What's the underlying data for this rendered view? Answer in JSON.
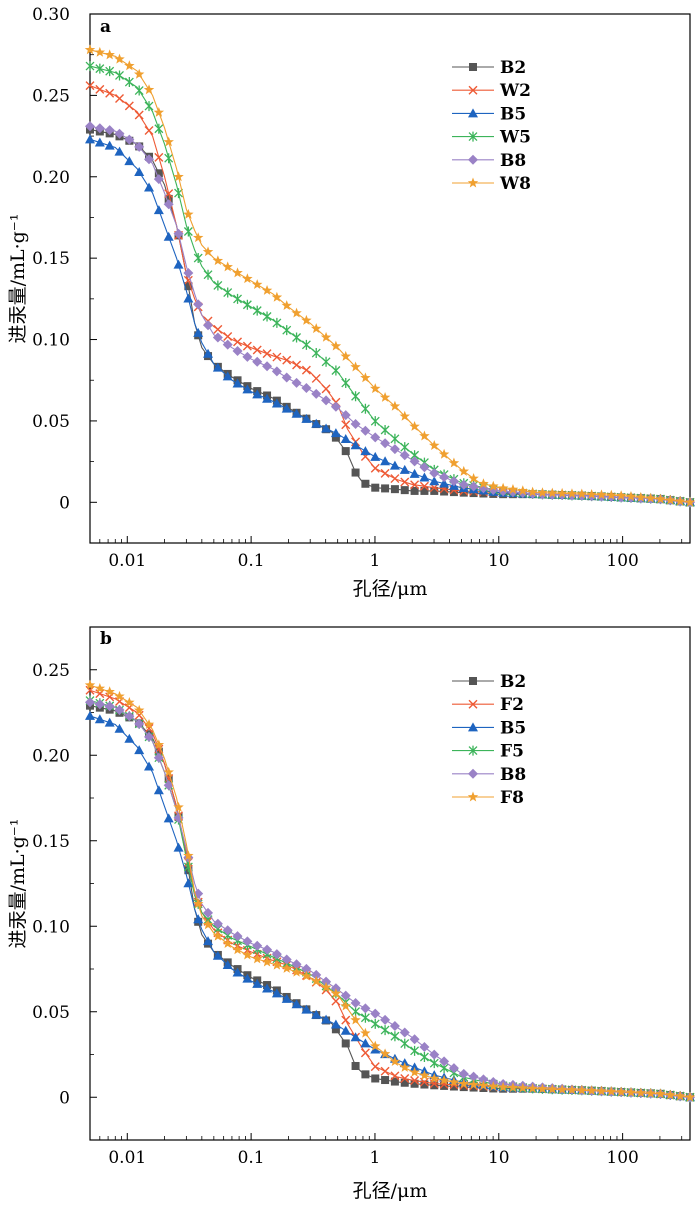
{
  "chart_data": [
    {
      "type": "line",
      "panel_label": "a",
      "xlabel": "孔径/μm",
      "ylabel": "进汞量/mL·g⁻¹",
      "x_scale": "log",
      "xlim": [
        0.005,
        350
      ],
      "ylim": [
        -0.025,
        0.3
      ],
      "x_ticks": [
        0.01,
        0.1,
        1,
        10,
        100
      ],
      "x_tick_labels": [
        "0.01",
        "0.1",
        "1",
        "10",
        "100"
      ],
      "y_ticks": [
        0,
        0.05,
        0.1,
        0.15,
        0.2,
        0.25,
        0.3
      ],
      "y_tick_labels": [
        "0",
        "0.05",
        "0.10",
        "0.15",
        "0.20",
        "0.25",
        "0.30"
      ],
      "legend_position": "top-right",
      "grid": false,
      "series": [
        {
          "name": "B2",
          "color": "#555555",
          "marker": "square",
          "x": [
            0.005,
            0.008,
            0.012,
            0.016,
            0.02,
            0.025,
            0.03,
            0.035,
            0.04,
            0.05,
            0.07,
            0.1,
            0.15,
            0.2,
            0.3,
            0.45,
            0.6,
            0.7,
            0.8,
            1,
            1.5,
            2,
            3,
            5,
            10,
            20,
            50,
            100,
            200,
            350
          ],
          "y": [
            0.229,
            0.226,
            0.22,
            0.21,
            0.195,
            0.17,
            0.14,
            0.11,
            0.095,
            0.085,
            0.077,
            0.07,
            0.064,
            0.058,
            0.05,
            0.043,
            0.03,
            0.018,
            0.012,
            0.009,
            0.008,
            0.007,
            0.007,
            0.006,
            0.005,
            0.005,
            0.004,
            0.003,
            0.002,
            0.0
          ]
        },
        {
          "name": "W2",
          "color": "#ee5a35",
          "marker": "x",
          "x": [
            0.005,
            0.008,
            0.012,
            0.016,
            0.02,
            0.025,
            0.03,
            0.035,
            0.04,
            0.05,
            0.07,
            0.1,
            0.15,
            0.2,
            0.3,
            0.4,
            0.5,
            0.6,
            0.8,
            1,
            1.5,
            2,
            3,
            5,
            10,
            20,
            50,
            100,
            200,
            350
          ],
          "y": [
            0.256,
            0.25,
            0.24,
            0.225,
            0.2,
            0.17,
            0.14,
            0.125,
            0.115,
            0.108,
            0.1,
            0.095,
            0.09,
            0.087,
            0.08,
            0.07,
            0.06,
            0.045,
            0.03,
            0.021,
            0.014,
            0.011,
            0.009,
            0.007,
            0.006,
            0.005,
            0.004,
            0.003,
            0.002,
            0.0
          ]
        },
        {
          "name": "B5",
          "color": "#1e64c0",
          "marker": "triangle",
          "x": [
            0.005,
            0.008,
            0.012,
            0.016,
            0.02,
            0.025,
            0.03,
            0.035,
            0.04,
            0.05,
            0.07,
            0.1,
            0.15,
            0.2,
            0.3,
            0.5,
            0.7,
            1,
            1.5,
            2,
            3,
            5,
            10,
            20,
            50,
            100,
            200,
            350
          ],
          "y": [
            0.223,
            0.218,
            0.205,
            0.19,
            0.17,
            0.15,
            0.13,
            0.11,
            0.098,
            0.085,
            0.075,
            0.068,
            0.062,
            0.057,
            0.05,
            0.042,
            0.035,
            0.028,
            0.022,
            0.018,
            0.013,
            0.009,
            0.006,
            0.005,
            0.004,
            0.003,
            0.002,
            0.0
          ]
        },
        {
          "name": "W5",
          "color": "#3cb45a",
          "marker": "asterisk",
          "x": [
            0.005,
            0.008,
            0.012,
            0.016,
            0.02,
            0.025,
            0.03,
            0.035,
            0.04,
            0.05,
            0.07,
            0.1,
            0.15,
            0.2,
            0.3,
            0.5,
            0.7,
            1,
            1.5,
            2,
            3,
            5,
            10,
            20,
            50,
            100,
            200,
            350
          ],
          "y": [
            0.268,
            0.264,
            0.255,
            0.24,
            0.22,
            0.195,
            0.17,
            0.155,
            0.145,
            0.135,
            0.127,
            0.12,
            0.112,
            0.105,
            0.095,
            0.08,
            0.065,
            0.05,
            0.038,
            0.03,
            0.02,
            0.012,
            0.007,
            0.005,
            0.004,
            0.003,
            0.002,
            0.0
          ]
        },
        {
          "name": "B8",
          "color": "#9a82c6",
          "marker": "diamond",
          "x": [
            0.005,
            0.008,
            0.012,
            0.016,
            0.02,
            0.025,
            0.03,
            0.035,
            0.04,
            0.05,
            0.07,
            0.1,
            0.15,
            0.2,
            0.3,
            0.5,
            0.7,
            1,
            1.5,
            2,
            3,
            5,
            10,
            20,
            50,
            100,
            200,
            350
          ],
          "y": [
            0.231,
            0.228,
            0.22,
            0.208,
            0.19,
            0.17,
            0.145,
            0.128,
            0.115,
            0.103,
            0.095,
            0.088,
            0.082,
            0.076,
            0.069,
            0.058,
            0.048,
            0.04,
            0.032,
            0.026,
            0.018,
            0.011,
            0.007,
            0.005,
            0.004,
            0.003,
            0.002,
            0.0
          ]
        },
        {
          "name": "W8",
          "color": "#f0a030",
          "marker": "star",
          "x": [
            0.005,
            0.008,
            0.012,
            0.016,
            0.02,
            0.025,
            0.03,
            0.035,
            0.04,
            0.05,
            0.07,
            0.1,
            0.15,
            0.2,
            0.3,
            0.5,
            0.7,
            1,
            1.5,
            2,
            3,
            5,
            7,
            10,
            20,
            50,
            100,
            200,
            350
          ],
          "y": [
            0.278,
            0.274,
            0.265,
            0.25,
            0.23,
            0.205,
            0.18,
            0.167,
            0.158,
            0.15,
            0.143,
            0.136,
            0.128,
            0.12,
            0.11,
            0.095,
            0.083,
            0.07,
            0.058,
            0.048,
            0.035,
            0.02,
            0.012,
            0.009,
            0.006,
            0.005,
            0.004,
            0.002,
            0.0
          ]
        }
      ]
    },
    {
      "type": "line",
      "panel_label": "b",
      "xlabel": "孔径/μm",
      "ylabel": "进汞量/mL·g⁻¹",
      "x_scale": "log",
      "xlim": [
        0.005,
        350
      ],
      "ylim": [
        -0.025,
        0.275
      ],
      "x_ticks": [
        0.01,
        0.1,
        1,
        10,
        100
      ],
      "x_tick_labels": [
        "0.01",
        "0.1",
        "1",
        "10",
        "100"
      ],
      "y_ticks": [
        0,
        0.05,
        0.1,
        0.15,
        0.2,
        0.25
      ],
      "y_tick_labels": [
        "0",
        "0.05",
        "0.10",
        "0.15",
        "0.20",
        "0.25"
      ],
      "legend_position": "top-right",
      "grid": false,
      "series": [
        {
          "name": "B2",
          "color": "#555555",
          "marker": "square",
          "x": [
            0.005,
            0.008,
            0.012,
            0.016,
            0.02,
            0.025,
            0.03,
            0.035,
            0.04,
            0.05,
            0.07,
            0.1,
            0.15,
            0.2,
            0.3,
            0.45,
            0.6,
            0.7,
            0.8,
            1,
            1.5,
            2,
            3,
            5,
            10,
            20,
            50,
            100,
            200,
            350
          ],
          "y": [
            0.229,
            0.226,
            0.22,
            0.21,
            0.195,
            0.17,
            0.14,
            0.11,
            0.095,
            0.085,
            0.077,
            0.07,
            0.064,
            0.058,
            0.05,
            0.043,
            0.03,
            0.018,
            0.014,
            0.011,
            0.009,
            0.008,
            0.007,
            0.006,
            0.005,
            0.005,
            0.004,
            0.003,
            0.002,
            0.0
          ]
        },
        {
          "name": "F2",
          "color": "#ee5a35",
          "marker": "x",
          "x": [
            0.005,
            0.008,
            0.012,
            0.016,
            0.02,
            0.025,
            0.03,
            0.035,
            0.04,
            0.05,
            0.07,
            0.1,
            0.15,
            0.2,
            0.3,
            0.4,
            0.5,
            0.6,
            0.8,
            1,
            1.5,
            2,
            3,
            5,
            10,
            20,
            50,
            100,
            200,
            350
          ],
          "y": [
            0.238,
            0.233,
            0.225,
            0.213,
            0.195,
            0.17,
            0.143,
            0.12,
            0.108,
            0.098,
            0.09,
            0.085,
            0.08,
            0.077,
            0.07,
            0.063,
            0.055,
            0.043,
            0.028,
            0.018,
            0.012,
            0.01,
            0.008,
            0.007,
            0.006,
            0.005,
            0.004,
            0.003,
            0.002,
            0.0
          ]
        },
        {
          "name": "B5",
          "color": "#1e64c0",
          "marker": "triangle",
          "x": [
            0.005,
            0.008,
            0.012,
            0.016,
            0.02,
            0.025,
            0.03,
            0.035,
            0.04,
            0.05,
            0.07,
            0.1,
            0.15,
            0.2,
            0.3,
            0.5,
            0.7,
            1,
            1.5,
            2,
            3,
            5,
            10,
            20,
            50,
            100,
            200,
            350
          ],
          "y": [
            0.223,
            0.218,
            0.205,
            0.19,
            0.17,
            0.15,
            0.13,
            0.11,
            0.098,
            0.085,
            0.075,
            0.068,
            0.062,
            0.057,
            0.05,
            0.042,
            0.035,
            0.028,
            0.022,
            0.018,
            0.013,
            0.009,
            0.006,
            0.005,
            0.004,
            0.003,
            0.002,
            0.0
          ]
        },
        {
          "name": "F5",
          "color": "#3cb45a",
          "marker": "asterisk",
          "x": [
            0.005,
            0.008,
            0.012,
            0.016,
            0.02,
            0.025,
            0.03,
            0.035,
            0.04,
            0.05,
            0.07,
            0.1,
            0.15,
            0.2,
            0.3,
            0.5,
            0.7,
            1,
            1.5,
            2,
            3,
            5,
            10,
            20,
            50,
            100,
            200,
            350
          ],
          "y": [
            0.232,
            0.228,
            0.22,
            0.208,
            0.19,
            0.168,
            0.14,
            0.118,
            0.108,
            0.1,
            0.093,
            0.088,
            0.082,
            0.078,
            0.072,
            0.06,
            0.05,
            0.043,
            0.035,
            0.028,
            0.02,
            0.012,
            0.007,
            0.005,
            0.004,
            0.003,
            0.002,
            0.0
          ]
        },
        {
          "name": "B8",
          "color": "#9a82c6",
          "marker": "diamond",
          "x": [
            0.005,
            0.008,
            0.012,
            0.016,
            0.02,
            0.025,
            0.03,
            0.035,
            0.04,
            0.05,
            0.07,
            0.1,
            0.15,
            0.2,
            0.3,
            0.5,
            0.7,
            1,
            1.5,
            2,
            3,
            5,
            10,
            20,
            50,
            100,
            200,
            350
          ],
          "y": [
            0.231,
            0.228,
            0.22,
            0.208,
            0.19,
            0.168,
            0.145,
            0.125,
            0.113,
            0.103,
            0.096,
            0.09,
            0.085,
            0.08,
            0.074,
            0.063,
            0.055,
            0.049,
            0.041,
            0.035,
            0.025,
            0.014,
            0.008,
            0.006,
            0.004,
            0.003,
            0.002,
            0.0
          ]
        },
        {
          "name": "F8",
          "color": "#f0a030",
          "marker": "star",
          "x": [
            0.005,
            0.008,
            0.012,
            0.016,
            0.02,
            0.025,
            0.03,
            0.035,
            0.04,
            0.05,
            0.07,
            0.1,
            0.15,
            0.2,
            0.3,
            0.5,
            0.7,
            1,
            1.5,
            2,
            3,
            5,
            10,
            20,
            50,
            100,
            200,
            350
          ],
          "y": [
            0.241,
            0.236,
            0.228,
            0.215,
            0.198,
            0.175,
            0.148,
            0.12,
            0.106,
            0.096,
            0.088,
            0.082,
            0.078,
            0.075,
            0.07,
            0.06,
            0.045,
            0.03,
            0.02,
            0.015,
            0.011,
            0.008,
            0.006,
            0.005,
            0.004,
            0.003,
            0.002,
            0.0
          ]
        }
      ]
    }
  ]
}
